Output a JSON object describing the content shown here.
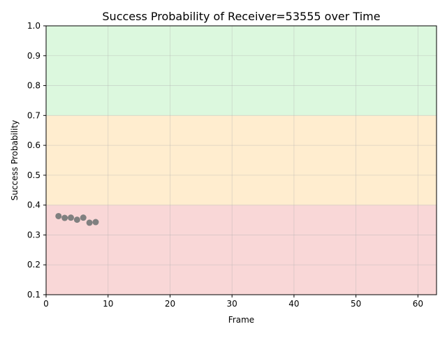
{
  "chart_data": {
    "type": "scatter",
    "title": "Success Probability of Receiver=53555 over Time",
    "xlabel": "Frame",
    "ylabel": "Success Probability",
    "xlim": [
      0,
      63
    ],
    "ylim": [
      0.1,
      1.0
    ],
    "xticks": [
      0,
      10,
      20,
      30,
      40,
      50,
      60
    ],
    "yticks": [
      0.1,
      0.2,
      0.3,
      0.4,
      0.5,
      0.6,
      0.7,
      0.8,
      0.9,
      1.0
    ],
    "grid": true,
    "bands": [
      {
        "from": 0.1,
        "to": 0.4,
        "color": "#f9d7d7"
      },
      {
        "from": 0.4,
        "to": 0.7,
        "color": "#ffedcf"
      },
      {
        "from": 0.7,
        "to": 1.0,
        "color": "#dcf8de"
      }
    ],
    "series": [
      {
        "color": "#808080",
        "x": [
          2,
          3,
          4,
          5,
          6,
          7,
          8
        ],
        "y": [
          0.363,
          0.357,
          0.358,
          0.351,
          0.358,
          0.341,
          0.343
        ]
      }
    ]
  }
}
